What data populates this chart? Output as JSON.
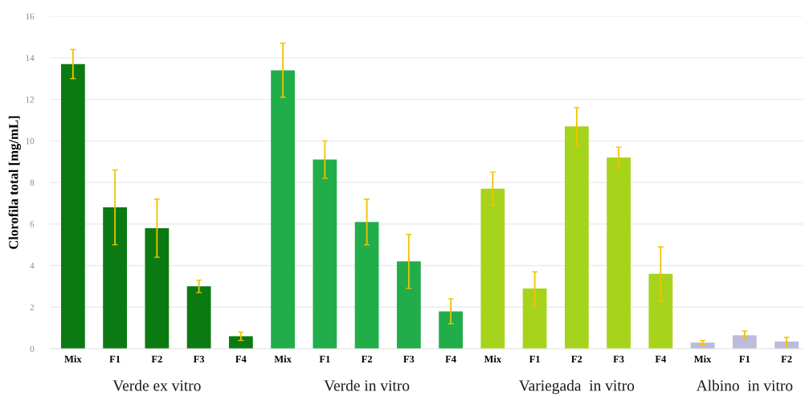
{
  "chart_data": {
    "type": "bar",
    "categories": [
      "Mix",
      "F1",
      "F2",
      "F3",
      "F4",
      "Mix",
      "F1",
      "F2",
      "F3",
      "F4",
      "Mix",
      "F1",
      "F2",
      "F3",
      "F4",
      "Mix",
      "F1",
      "F2"
    ],
    "series": [
      {
        "name": "Verde ex vitro",
        "color": "#0b7a12",
        "values": [
          13.7,
          6.8,
          5.8,
          3.0,
          0.6,
          null,
          null,
          null,
          null,
          null,
          null,
          null,
          null,
          null,
          null,
          null,
          null,
          null
        ],
        "errors": [
          0.7,
          1.8,
          1.4,
          0.3,
          0.2,
          null,
          null,
          null,
          null,
          null,
          null,
          null,
          null,
          null,
          null,
          null,
          null,
          null
        ]
      },
      {
        "name": "Verde in vitro",
        "color": "#22ad4b",
        "values": [
          null,
          null,
          null,
          null,
          null,
          13.4,
          9.1,
          6.1,
          4.2,
          1.8,
          null,
          null,
          null,
          null,
          null,
          null,
          null,
          null
        ],
        "errors": [
          null,
          null,
          null,
          null,
          null,
          1.3,
          0.9,
          1.1,
          1.3,
          0.6,
          null,
          null,
          null,
          null,
          null,
          null,
          null,
          null
        ]
      },
      {
        "name": "Variegada  in vitro",
        "color": "#a6d41c",
        "values": [
          null,
          null,
          null,
          null,
          null,
          null,
          null,
          null,
          null,
          null,
          7.7,
          2.9,
          10.7,
          9.2,
          3.6,
          null,
          null,
          null
        ],
        "errors": [
          null,
          null,
          null,
          null,
          null,
          null,
          null,
          null,
          null,
          null,
          0.8,
          0.8,
          0.9,
          0.5,
          1.3,
          null,
          null,
          null
        ]
      },
      {
        "name": "Albino  in vitro",
        "color": "#bcbcdc",
        "values": [
          null,
          null,
          null,
          null,
          null,
          null,
          null,
          null,
          null,
          null,
          null,
          null,
          null,
          null,
          null,
          0.3,
          0.65,
          0.35
        ],
        "errors": [
          null,
          null,
          null,
          null,
          null,
          null,
          null,
          null,
          null,
          null,
          null,
          null,
          null,
          null,
          null,
          0.1,
          0.2,
          0.2
        ]
      }
    ],
    "ylabel": "Clorofila total [mg/mL]",
    "ylim": [
      0,
      16
    ],
    "yticks": [
      0,
      2,
      4,
      6,
      8,
      10,
      12,
      14,
      16
    ],
    "grid": "y"
  }
}
